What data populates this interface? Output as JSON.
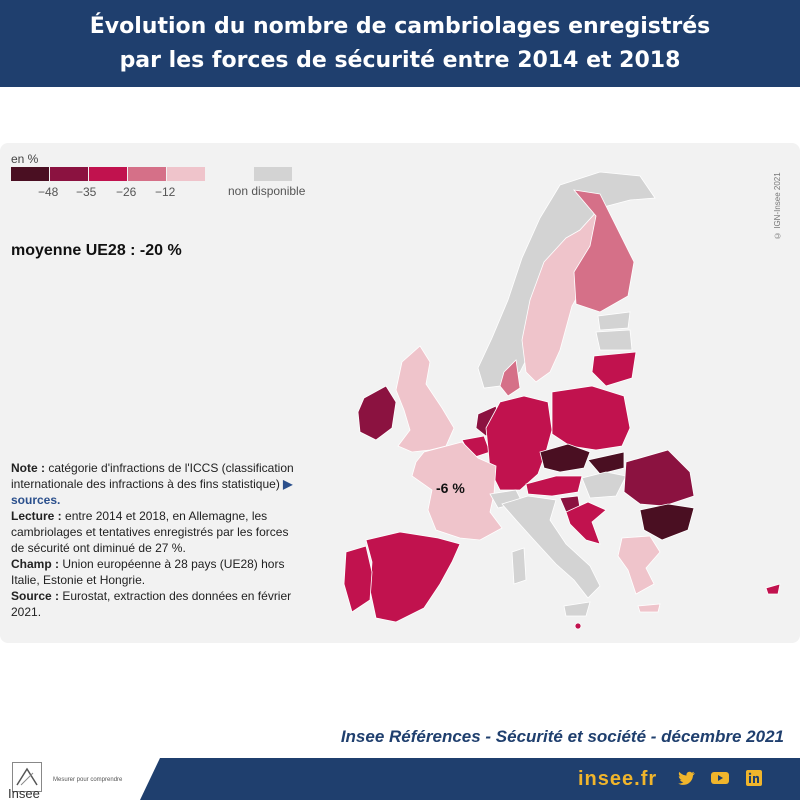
{
  "header": {
    "title_line1": "Évolution du nombre de cambriolages enregistrés",
    "title_line2": "par les forces de sécurité entre 2014 et 2018"
  },
  "legend": {
    "unit": "en %",
    "classes": [
      {
        "color": "#4a0f22"
      },
      {
        "color": "#8b1240"
      },
      {
        "color": "#c1124e"
      },
      {
        "color": "#d57088"
      },
      {
        "color": "#efc4cb"
      }
    ],
    "ticks": [
      "−48",
      "−35",
      "−26",
      "−12"
    ],
    "not_available_label": "non disponible",
    "not_available_color": "#d3d3d3"
  },
  "average_label": "moyenne UE28 : -20 %",
  "copyright": "© IGN-Insee 2021",
  "france_label": "-6 %",
  "notes": {
    "note_label": "Note :",
    "note_text": " catégorie d'infractions de l'ICCS (classification internationale des infractions à des fins statistique)",
    "sources_link": "sources",
    "lecture_label": "Lecture :",
    "lecture_text": " entre 2014 et 2018, en Allemagne, les cambriolages et tentatives enregistrés par les forces de sécurité ont diminué de 27 %.",
    "champ_label": "Champ :",
    "champ_text": " Union européenne à 28 pays (UE28) hors Italie, Estonie et Hongrie.",
    "source_label": "Source :",
    "source_text": " Eurostat, extraction des données en février 2021."
  },
  "publication": "Insee Références - Sécurité et société - décembre 2021",
  "footer": {
    "logo": "Insee",
    "tagline": "Mesurer pour comprendre",
    "site": "insee.fr",
    "social_icons": [
      "twitter-icon",
      "youtube-icon",
      "linkedin-icon"
    ]
  },
  "map_regions": [
    {
      "name": "Finlande",
      "class": 4
    },
    {
      "name": "Suède",
      "class": 5
    },
    {
      "name": "Norvège",
      "class": "na"
    },
    {
      "name": "Estonie",
      "class": "na"
    },
    {
      "name": "Lettonie",
      "class": "na"
    },
    {
      "name": "Lituanie",
      "class": 3
    },
    {
      "name": "Danemark",
      "class": 4
    },
    {
      "name": "Irlande",
      "class": 2
    },
    {
      "name": "Royaume-Uni",
      "class": 5
    },
    {
      "name": "Pays-Bas",
      "class": 2
    },
    {
      "name": "Belgique",
      "class": 3
    },
    {
      "name": "Allemagne",
      "class": 3
    },
    {
      "name": "Pologne",
      "class": 3
    },
    {
      "name": "Tchéquie",
      "class": 1
    },
    {
      "name": "Slovaquie",
      "class": 1
    },
    {
      "name": "Autriche",
      "class": 3
    },
    {
      "name": "Hongrie",
      "class": "na"
    },
    {
      "name": "Roumanie",
      "class": 2
    },
    {
      "name": "Bulgarie",
      "class": 1
    },
    {
      "name": "Slovénie",
      "class": 2
    },
    {
      "name": "Croatie",
      "class": 3
    },
    {
      "name": "France",
      "class": 5
    },
    {
      "name": "Suisse",
      "class": "na"
    },
    {
      "name": "Italie",
      "class": "na"
    },
    {
      "name": "Espagne",
      "class": 3
    },
    {
      "name": "Portugal",
      "class": 3
    },
    {
      "name": "Grèce",
      "class": 5
    },
    {
      "name": "Chypre",
      "class": 3
    },
    {
      "name": "Malte",
      "class": 3
    }
  ]
}
